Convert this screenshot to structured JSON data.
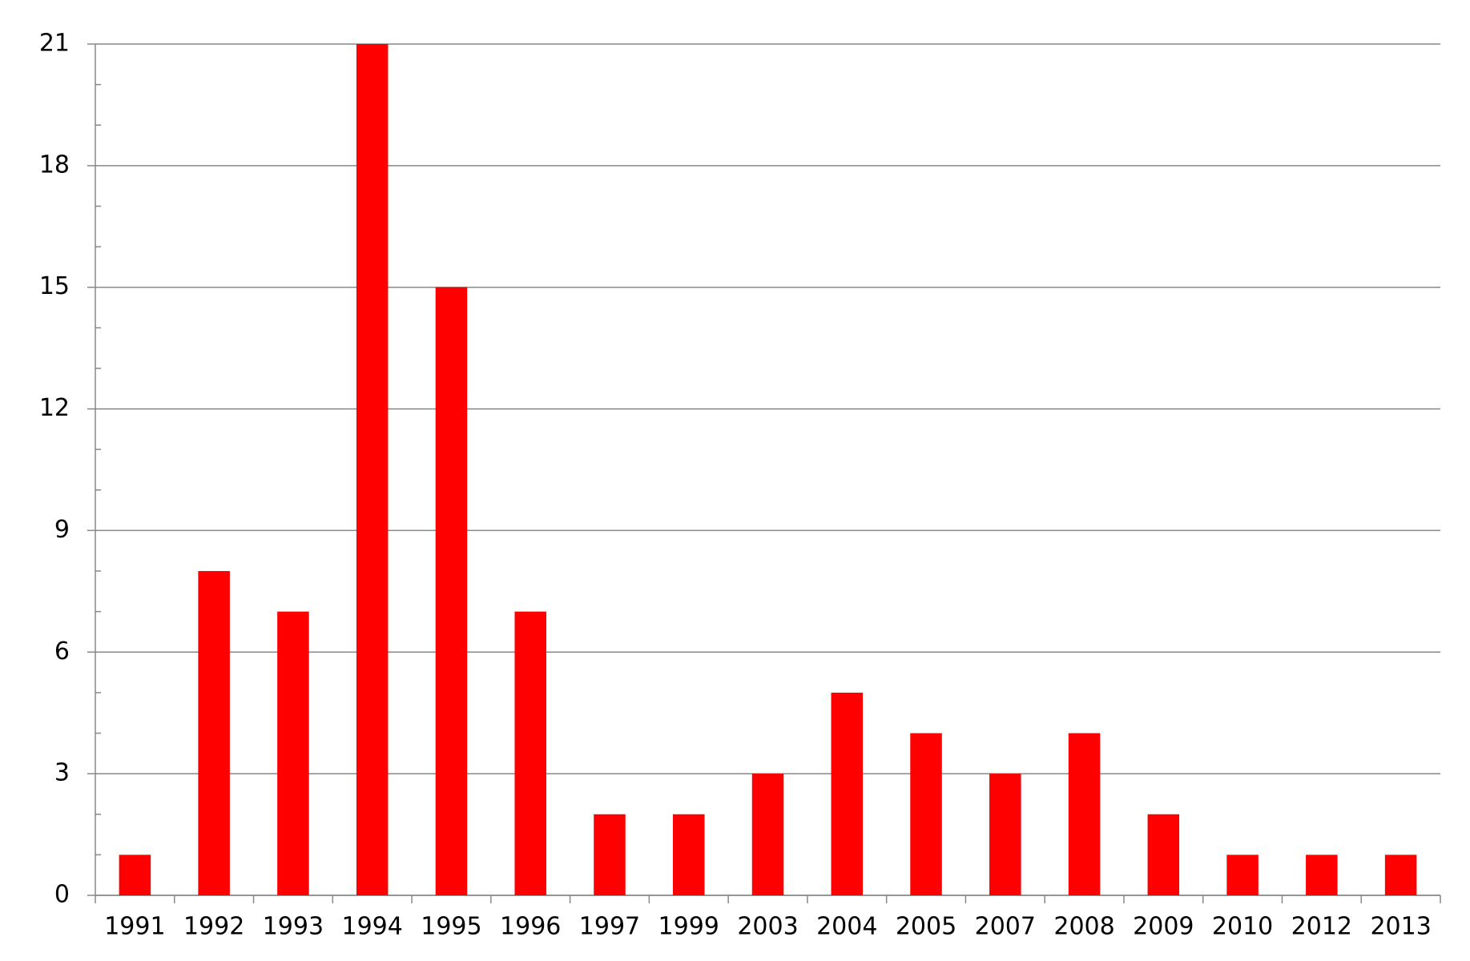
{
  "chart_data": {
    "type": "bar",
    "categories": [
      "1991",
      "1992",
      "1993",
      "1994",
      "1995",
      "1996",
      "1997",
      "1999",
      "2003",
      "2004",
      "2005",
      "2007",
      "2008",
      "2009",
      "2010",
      "2012",
      "2013"
    ],
    "values": [
      1,
      8,
      7,
      21,
      15,
      7,
      2,
      2,
      3,
      5,
      4,
      3,
      4,
      2,
      1,
      1,
      1
    ],
    "color": "#ff0000",
    "ylim": [
      0,
      21
    ],
    "yticks": [
      0,
      3,
      6,
      9,
      12,
      15,
      18,
      21
    ],
    "yminorticks": [
      1,
      2,
      4,
      5,
      7,
      8,
      10,
      11,
      13,
      14,
      16,
      17,
      19,
      20
    ],
    "grid": true
  }
}
